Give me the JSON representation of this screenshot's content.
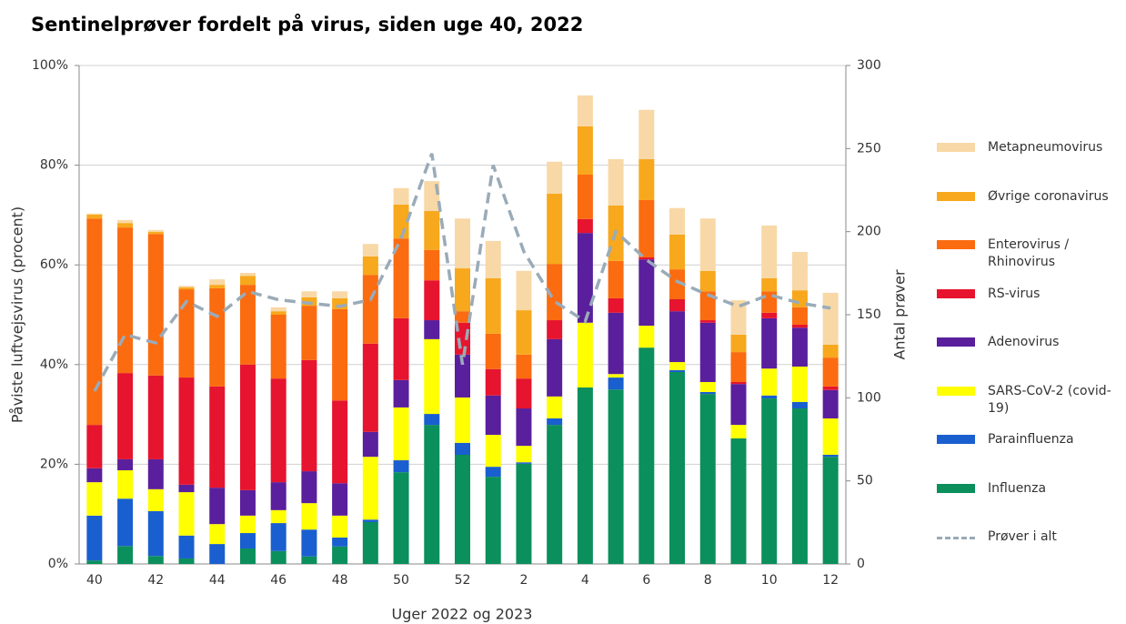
{
  "chart_data": {
    "type": "stacked-bar",
    "title": "Sentinelprøver fordelt på virus, siden uge 40, 2022",
    "y_label": "Påviste luftvejsvirus (procent)",
    "y2_label": "Antal prøver",
    "x_label": "Uger 2022 og 2023",
    "categories": [
      "40",
      null,
      "42",
      null,
      "44",
      null,
      "46",
      null,
      "48",
      null,
      "50",
      null,
      "52",
      null,
      "2",
      null,
      "4",
      null,
      "6",
      null,
      "8",
      null,
      "10",
      null,
      "12"
    ],
    "ylim": [
      0,
      100
    ],
    "yticks": [
      {
        "value": 0,
        "label": "0%"
      },
      {
        "value": 20,
        "label": "20%"
      },
      {
        "value": 40,
        "label": "40%"
      },
      {
        "value": 60,
        "label": "60%"
      },
      {
        "value": 80,
        "label": "80%"
      },
      {
        "value": 100,
        "label": "100%"
      }
    ],
    "y2lim": [
      0,
      300
    ],
    "y2ticks": [
      0,
      50,
      100,
      150,
      200,
      250,
      300
    ],
    "grid": true,
    "legend": "right",
    "series": [
      {
        "name": "Influenza",
        "color": "#0b8f5c",
        "values": [
          0.7,
          3.6,
          1.6,
          1.1,
          0,
          3.1,
          2.6,
          1.5,
          3.5,
          8.4,
          18.4,
          27.9,
          21.9,
          17.5,
          20.1,
          27.9,
          35.4,
          35.0,
          43.4,
          38.5,
          34.1,
          25.2,
          33.2,
          31.2,
          21.5
        ]
      },
      {
        "name": "Parainfluenza",
        "color": "#1a5fcf",
        "values": [
          9.0,
          9.5,
          9.0,
          4.6,
          4.0,
          3.1,
          5.6,
          5.4,
          1.8,
          0.5,
          2.4,
          2.2,
          2.4,
          2.0,
          0.3,
          1.3,
          0,
          2.4,
          0,
          0.4,
          0.4,
          0,
          0.6,
          1.3,
          0.4
        ]
      },
      {
        "name": "SARS-CoV-2 (covid-19)",
        "color": "#ffff00",
        "values": [
          6.7,
          5.7,
          4.4,
          8.7,
          4.0,
          3.5,
          2.6,
          5.3,
          4.4,
          12.6,
          10.6,
          15.0,
          9.1,
          6.4,
          3.3,
          4.4,
          13.0,
          0.7,
          4.4,
          1.6,
          2.0,
          2.7,
          5.4,
          7.1,
          7.3
        ]
      },
      {
        "name": "Adenovirus",
        "color": "#5a1f9c",
        "values": [
          2.8,
          2.2,
          6.0,
          1.5,
          7.3,
          5.1,
          5.6,
          6.4,
          6.5,
          5.0,
          5.5,
          3.8,
          8.6,
          7.9,
          7.5,
          11.5,
          18.0,
          12.3,
          13.3,
          10.2,
          11.9,
          8.2,
          10.1,
          7.8,
          5.7
        ]
      },
      {
        "name": "RS-virus",
        "color": "#e6142e",
        "values": [
          8.7,
          17.3,
          16.8,
          21.5,
          20.3,
          25.2,
          20.8,
          22.3,
          16.6,
          17.7,
          12.4,
          8.0,
          6.4,
          5.3,
          6.0,
          3.8,
          2.8,
          2.9,
          0.4,
          2.4,
          0.5,
          0.4,
          1.1,
          0.6,
          0.7
        ]
      },
      {
        "name": "Enterovirus / Rhinovirus",
        "color": "#fb6b10",
        "values": [
          41.4,
          29.2,
          28.4,
          17.7,
          19.7,
          16.0,
          12.8,
          10.9,
          18.3,
          13.8,
          16.0,
          6.1,
          2.3,
          7.1,
          4.8,
          11.3,
          8.9,
          7.5,
          11.5,
          6.0,
          5.8,
          6.0,
          4.3,
          3.5,
          5.8
        ]
      },
      {
        "name": "Øvrige coronavirus",
        "color": "#f7a81c",
        "values": [
          0.8,
          0.9,
          0.4,
          0.4,
          0.7,
          1.8,
          0.7,
          1.7,
          2.2,
          3.7,
          6.8,
          7.8,
          8.6,
          11.1,
          8.9,
          14.1,
          9.7,
          11.1,
          8.2,
          7.0,
          4.1,
          3.5,
          2.6,
          3.4,
          2.6
        ]
      },
      {
        "name": "Metapneumovirus",
        "color": "#f8d8a6",
        "values": [
          0.2,
          0.6,
          0.4,
          0.3,
          1.1,
          0.6,
          0.8,
          1.2,
          1.4,
          2.5,
          3.3,
          6.0,
          10.0,
          7.5,
          7.9,
          6.4,
          6.2,
          9.3,
          9.9,
          5.3,
          10.5,
          6.9,
          10.6,
          7.7,
          10.4
        ]
      },
      {
        "name": "Prøver i alt",
        "color": "#9aabb8",
        "type": "line",
        "axis": "y2",
        "dashed": true,
        "values": [
          104,
          138,
          133,
          158,
          149,
          164,
          159,
          157,
          155,
          159,
          196,
          247,
          120,
          240,
          188,
          158,
          146,
          200,
          183,
          170,
          162,
          155,
          162,
          157,
          154
        ]
      }
    ]
  }
}
